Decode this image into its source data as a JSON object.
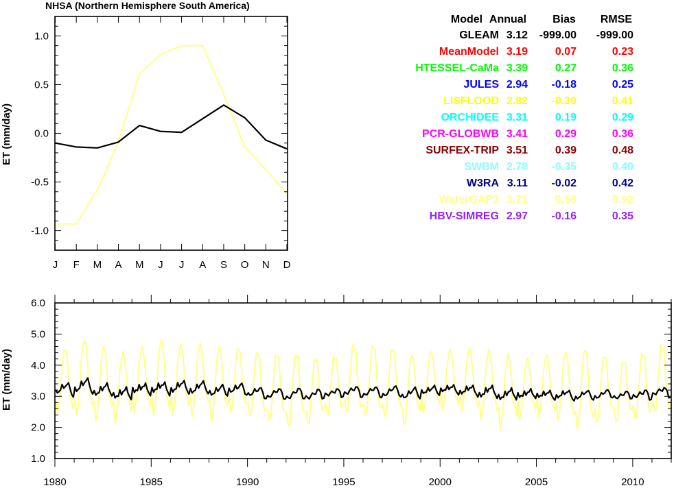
{
  "stats_table": {
    "headers": [
      "Model",
      "Annual",
      "Bias",
      "RMSE"
    ],
    "rows": [
      {
        "model": "GLEAM",
        "annual": "3.12",
        "bias": "-999.00",
        "rmse": "-999.00",
        "color": "#000000"
      },
      {
        "model": "MeanModel",
        "annual": "3.19",
        "bias": "0.07",
        "rmse": "0.23",
        "color": "#ff0000"
      },
      {
        "model": "HTESSEL-CaMa",
        "annual": "3.39",
        "bias": "0.27",
        "rmse": "0.36",
        "color": "#00ff00"
      },
      {
        "model": "JULES",
        "annual": "2.94",
        "bias": "-0.18",
        "rmse": "0.25",
        "color": "#0000ff"
      },
      {
        "model": "LISFLOOD",
        "annual": "2.82",
        "bias": "-0.30",
        "rmse": "0.41",
        "color": "#ffff00"
      },
      {
        "model": "ORCHIDEE",
        "annual": "3.31",
        "bias": "0.19",
        "rmse": "0.29",
        "color": "#00ffff"
      },
      {
        "model": "PCR-GLOBWB",
        "annual": "3.41",
        "bias": "0.29",
        "rmse": "0.36",
        "color": "#ff00ff"
      },
      {
        "model": "SURFEX-TRIP",
        "annual": "3.51",
        "bias": "0.39",
        "rmse": "0.48",
        "color": "#8b0000"
      },
      {
        "model": "SWBM",
        "annual": "2.78",
        "bias": "-0.35",
        "rmse": "0.40",
        "color": "#87ffff"
      },
      {
        "model": "W3RA",
        "annual": "3.11",
        "bias": "-0.02",
        "rmse": "0.42",
        "color": "#00008b"
      },
      {
        "model": "WaterGAP3",
        "annual": "3.71",
        "bias": "0.58",
        "rmse": "0.92",
        "color": "#ffff87"
      },
      {
        "model": "HBV-SIMREG",
        "annual": "2.97",
        "bias": "-0.16",
        "rmse": "0.35",
        "color": "#9a1eff"
      }
    ]
  },
  "chart_data": [
    {
      "type": "line",
      "title": "NHSA (Northern Hemisphere South America)",
      "xlabel": "",
      "ylabel": "ET (mm/day)",
      "categories": [
        "J",
        "F",
        "M",
        "A",
        "M",
        "J",
        "J",
        "A",
        "S",
        "O",
        "N",
        "D"
      ],
      "ylim": [
        -1.2,
        1.2
      ],
      "yticks": [
        "-1.0",
        "-0.5",
        "0.0",
        "0.5",
        "1.0"
      ],
      "grid": false,
      "series": [
        {
          "color": "#000000",
          "values": [
            -0.1,
            -0.14,
            -0.15,
            -0.09,
            0.08,
            0.02,
            0.01,
            0.15,
            0.29,
            0.16,
            -0.07,
            -0.16
          ]
        },
        {
          "color": "#ffff87",
          "values": [
            -0.93,
            -0.93,
            -0.58,
            -0.09,
            0.61,
            0.81,
            0.9,
            0.9,
            0.4,
            -0.14,
            -0.37,
            -0.62
          ]
        }
      ]
    },
    {
      "type": "line",
      "title": "",
      "xlabel": "",
      "ylabel": "ET (mm/day)",
      "xlim": [
        1980,
        2012
      ],
      "ylim": [
        1.0,
        6.0
      ],
      "xticks": [
        "1980",
        "1985",
        "1990",
        "1995",
        "2000",
        "2005",
        "2010"
      ],
      "yticks": [
        "1.0",
        "2.0",
        "3.0",
        "4.0",
        "5.0",
        "6.0"
      ],
      "grid": false,
      "series_years": [
        1980,
        1981,
        1982,
        1983,
        1984,
        1985,
        1986,
        1987,
        1988,
        1989,
        1990,
        1991,
        1992,
        1993,
        1994,
        1995,
        1996,
        1997,
        1998,
        1999,
        2000,
        2001,
        2002,
        2003,
        2004,
        2005,
        2006,
        2007,
        2008,
        2009,
        2010,
        2011
      ],
      "series": [
        {
          "color": "#000000",
          "annual_means": [
            3.18,
            3.28,
            3.16,
            3.05,
            3.2,
            3.22,
            3.25,
            3.23,
            3.14,
            3.2,
            3.08,
            3.04,
            3.03,
            3.02,
            3.08,
            3.12,
            3.1,
            3.11,
            3.05,
            3.16,
            3.2,
            3.15,
            3.1,
            3.02,
            3.05,
            3.02,
            3.01,
            3.0,
            3.03,
            3.0,
            3.02,
            3.1
          ],
          "amplitudes": [
            0.28,
            0.3,
            0.25,
            0.26,
            0.25,
            0.25,
            0.24,
            0.25,
            0.26,
            0.28,
            0.25,
            0.22,
            0.24,
            0.24,
            0.22,
            0.25,
            0.22,
            0.22,
            0.25,
            0.22,
            0.2,
            0.2,
            0.22,
            0.22,
            0.2,
            0.2,
            0.2,
            0.18,
            0.18,
            0.2,
            0.25,
            0.22
          ]
        },
        {
          "color": "#ffff87",
          "annual_means": [
            3.3,
            3.45,
            3.3,
            3.2,
            3.4,
            3.42,
            3.4,
            3.44,
            3.3,
            3.38,
            3.2,
            3.1,
            3.05,
            3.05,
            3.2,
            3.35,
            3.3,
            3.3,
            3.1,
            3.35,
            3.4,
            3.38,
            3.25,
            3.05,
            3.15,
            3.2,
            3.15,
            3.05,
            3.12,
            3.05,
            3.15,
            3.35
          ],
          "amplitudes": [
            1.2,
            1.3,
            1.3,
            1.3,
            1.25,
            1.35,
            1.2,
            1.25,
            1.4,
            1.3,
            1.25,
            1.2,
            1.3,
            1.25,
            1.2,
            1.35,
            1.3,
            1.2,
            1.3,
            1.2,
            1.15,
            1.1,
            1.15,
            1.3,
            1.15,
            1.2,
            1.25,
            1.4,
            1.2,
            1.2,
            1.35,
            1.3
          ]
        }
      ]
    }
  ]
}
